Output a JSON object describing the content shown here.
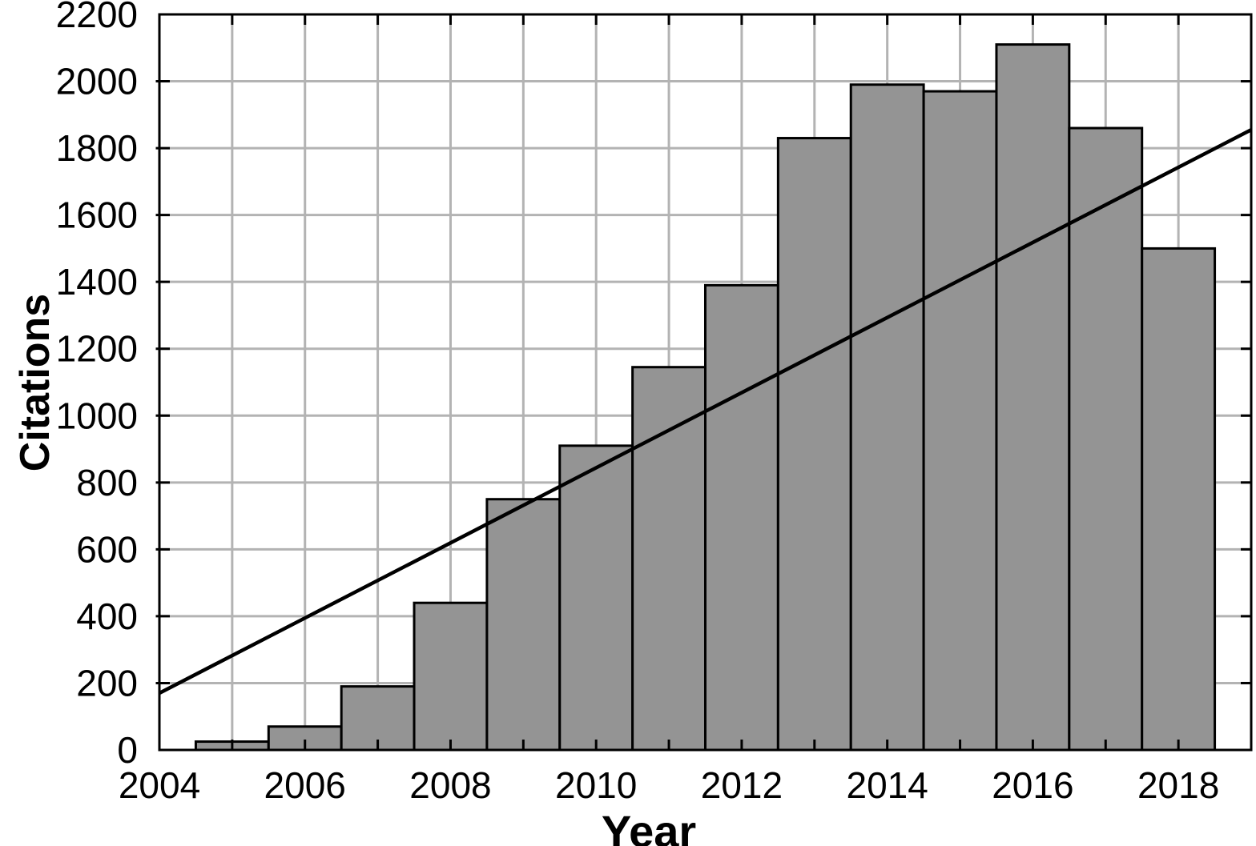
{
  "figure": {
    "background": "#ffffff"
  },
  "chart_data": {
    "type": "bar",
    "title": "",
    "xlabel": "Year",
    "ylabel": "Citations",
    "categories": [
      2005,
      2006,
      2007,
      2008,
      2009,
      2010,
      2011,
      2012,
      2013,
      2014,
      2015,
      2016,
      2017,
      2018
    ],
    "values": [
      25,
      70,
      190,
      440,
      750,
      910,
      1145,
      1390,
      1830,
      1990,
      1970,
      2110,
      1860,
      1500
    ],
    "bar_width_years": 1,
    "trend_line": {
      "type": "linear",
      "x": [
        2004,
        2019
      ],
      "y": [
        170,
        1855
      ]
    },
    "xlim": [
      2004,
      2019
    ],
    "ylim": [
      0,
      2200
    ],
    "x_tick_labels": [
      2004,
      2006,
      2008,
      2010,
      2012,
      2014,
      2016,
      2018
    ],
    "x_minor_ticks_every_year": true,
    "y_tick_labels": [
      0,
      200,
      400,
      600,
      800,
      1000,
      1200,
      1400,
      1600,
      1800,
      2000,
      2200
    ],
    "grid": true,
    "legend": "none",
    "colors": {
      "bar_fill": "#949494",
      "bar_edge": "#000000",
      "grid": "#b3b3b3",
      "spine": "#000000",
      "trend": "#000000",
      "text": "#000000"
    }
  }
}
